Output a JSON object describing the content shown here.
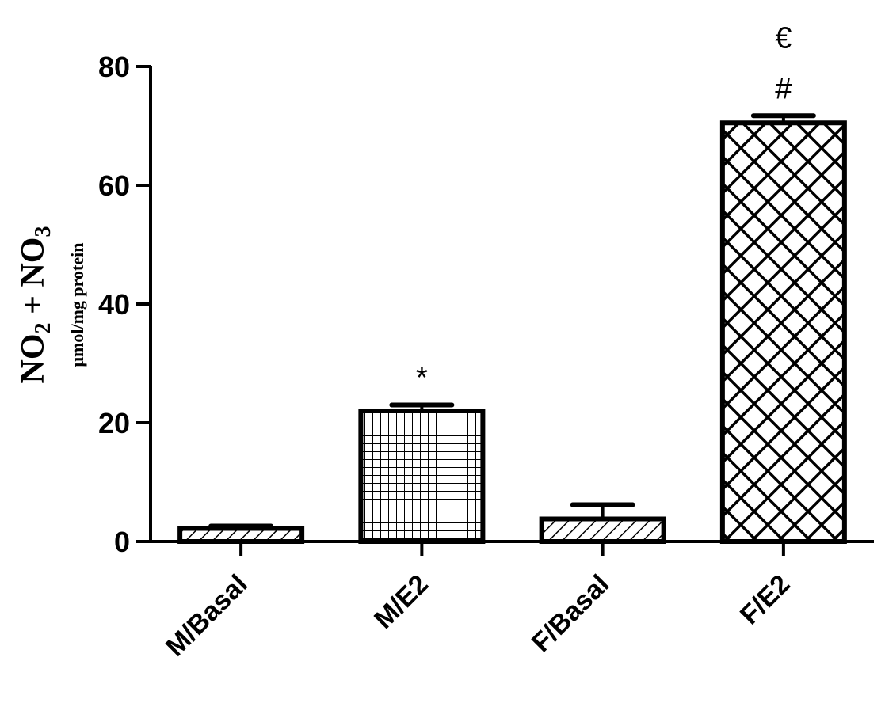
{
  "chart_data": {
    "type": "bar",
    "categories": [
      "M/Basal",
      "M/E2",
      "F/Basal",
      "F/E2"
    ],
    "values": [
      2.2,
      22,
      3.8,
      70.5
    ],
    "errors": [
      0.4,
      1.0,
      2.4,
      1.2
    ],
    "patterns": [
      "diagonal-hatch",
      "grid",
      "diagonal-hatch",
      "crosshatch"
    ],
    "annotations": [
      {
        "category": "M/E2",
        "lines": [
          "*"
        ]
      },
      {
        "category": "F/E2",
        "lines": [
          "€",
          "#"
        ]
      }
    ],
    "ylabel": {
      "main": "NO₂ + NO₃",
      "main_parts": [
        "NO",
        "2",
        " + NO",
        "3"
      ],
      "sub": "μmol/mg protein"
    },
    "yticks": [
      "0",
      "20",
      "40",
      "60",
      "80"
    ],
    "ylim": [
      0,
      80
    ],
    "xlabel": "",
    "title": "",
    "grid": false,
    "legend": "none"
  }
}
